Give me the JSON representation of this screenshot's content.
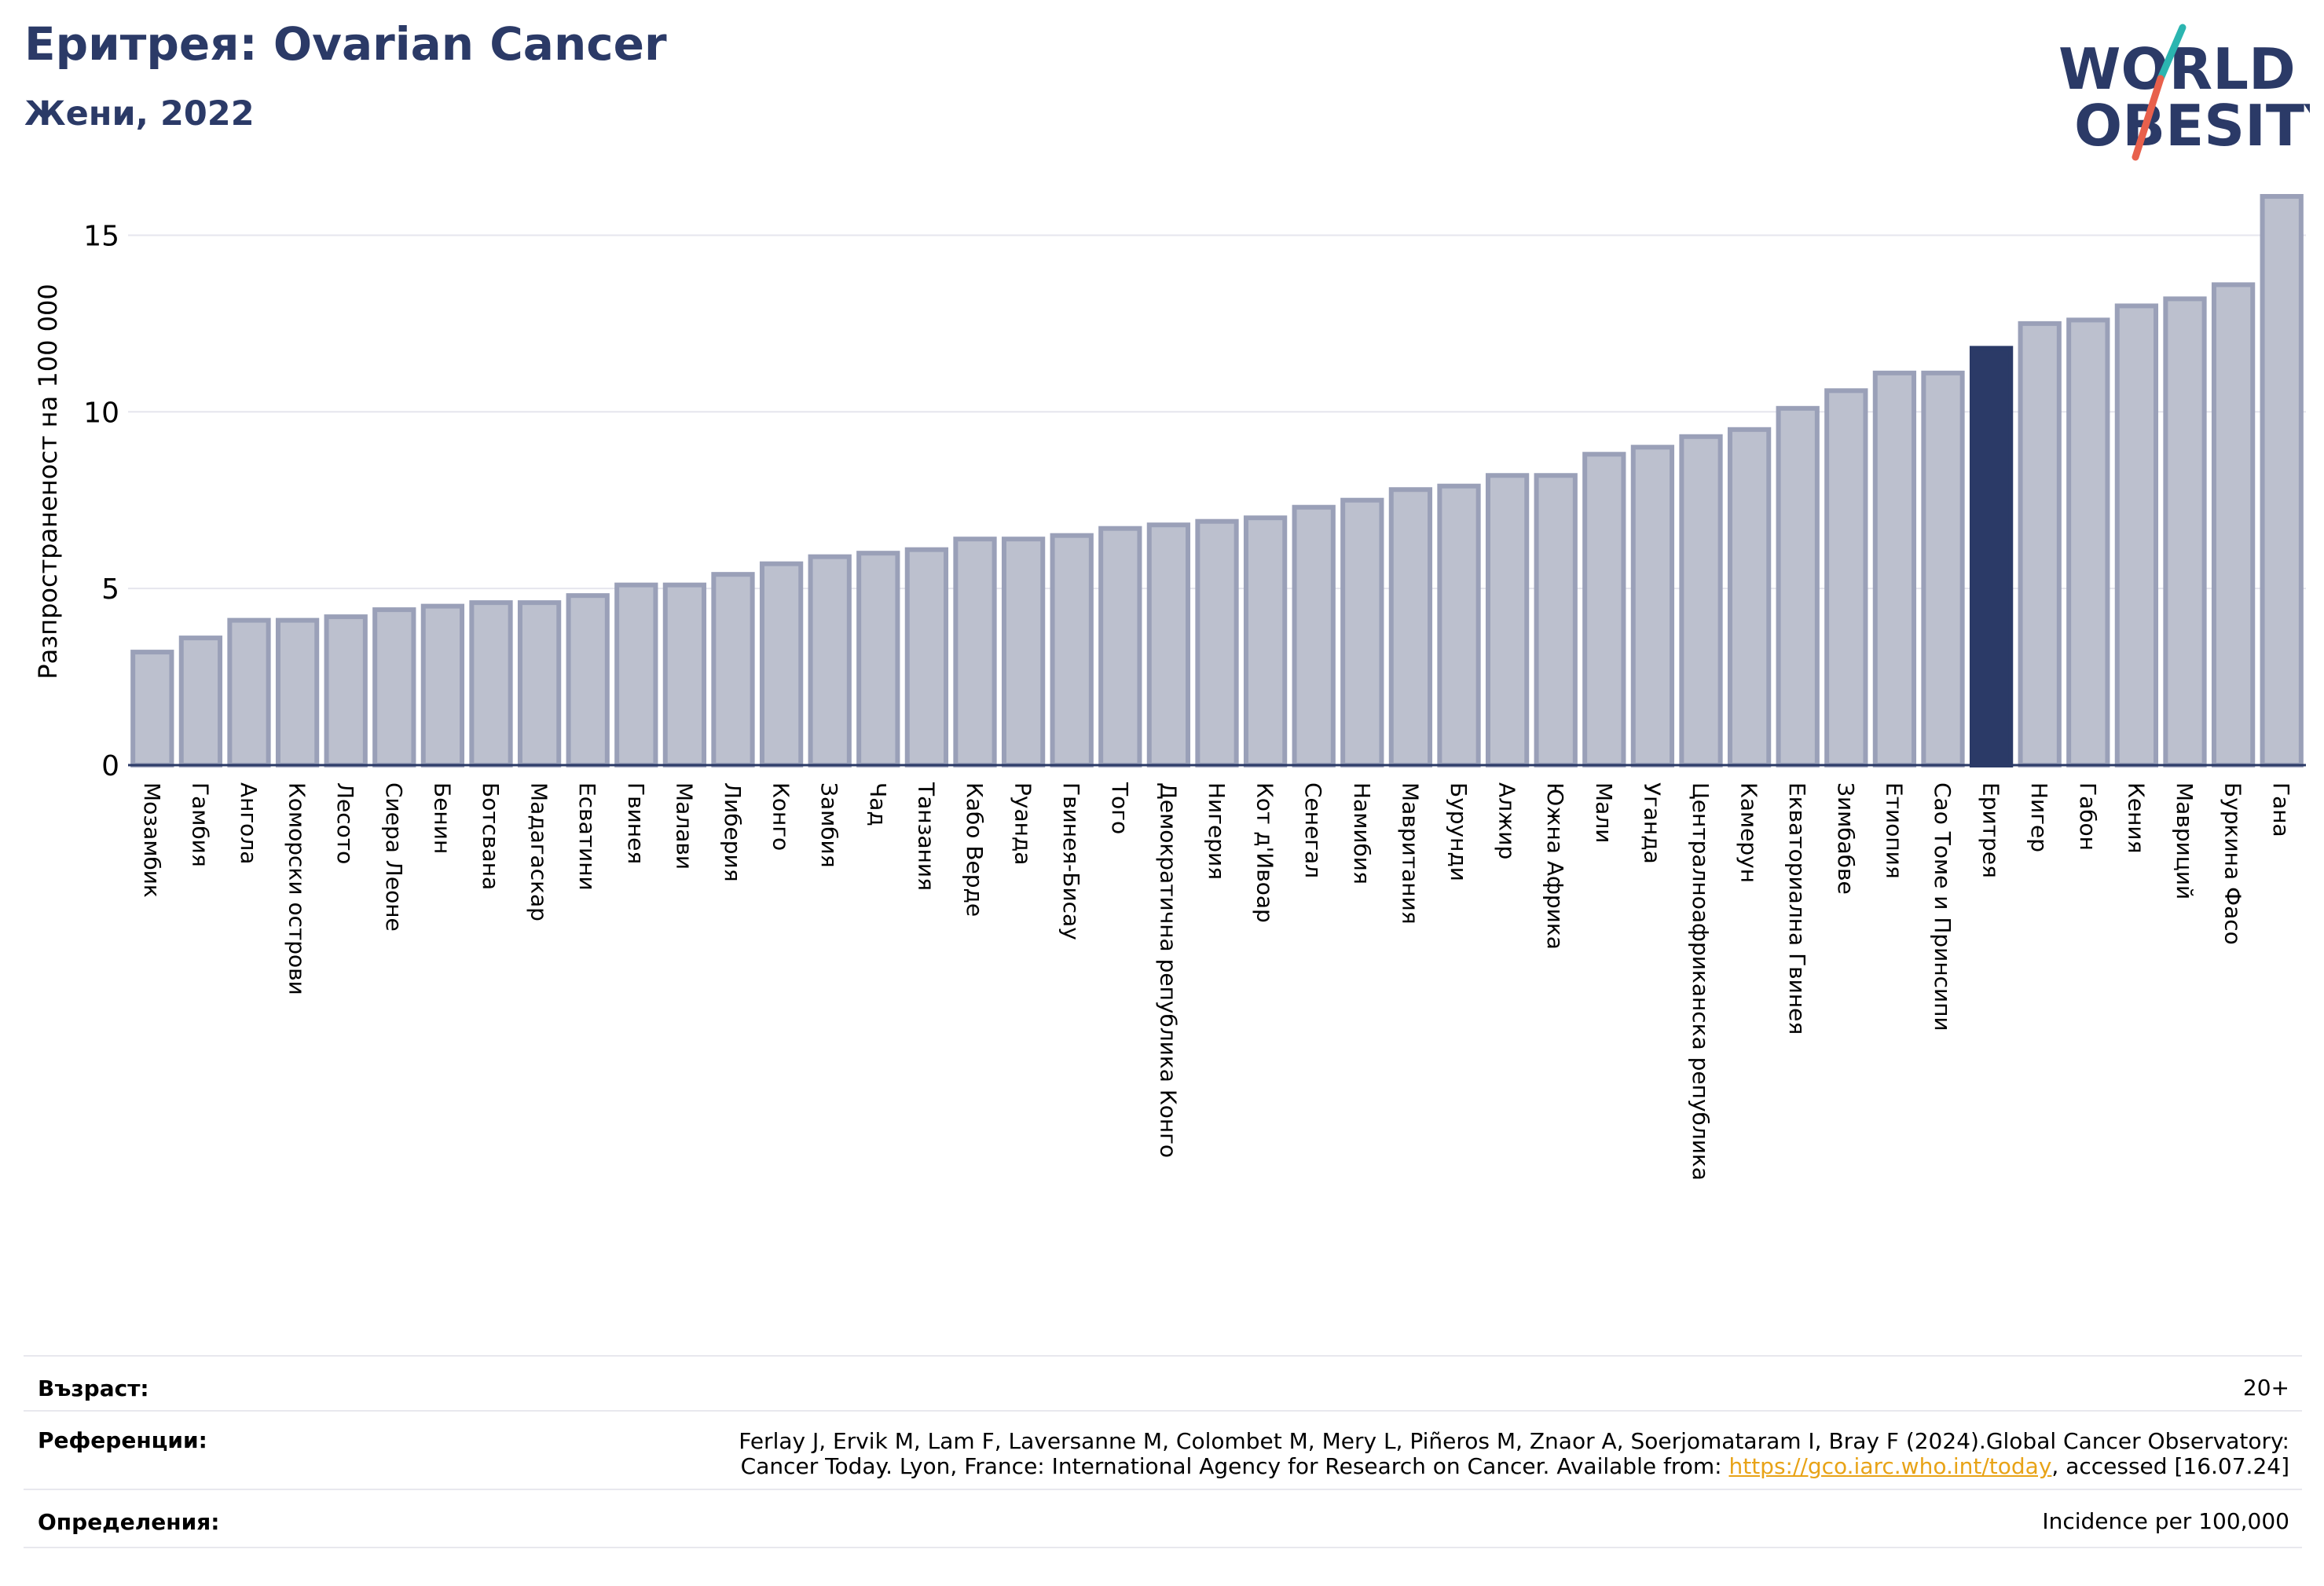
{
  "header": {
    "title": "Еритрея: Ovarian Cancer",
    "subtitle": "Жени, 2022"
  },
  "logo": {
    "line1": "WORLD",
    "line2": "OBESITY",
    "colors": {
      "navy": "#2b3a67",
      "teal": "#2bb5b0",
      "coral": "#e8604c"
    }
  },
  "chart_data": {
    "type": "bar",
    "ylabel": "Разпространеност  на 100 000",
    "ylim": [
      0,
      16.5
    ],
    "yticks": [
      0,
      5,
      10,
      15
    ],
    "grid": true,
    "highlight": "Еритрея",
    "colors": {
      "bar": "#bcc0ce",
      "bar_edge": "#9aa0b8",
      "highlight": "#2b3a67",
      "grid": "#e6e6ee"
    },
    "categories": [
      "Мозамбик",
      "Гамбия",
      "Ангола",
      "Коморски острови",
      "Лесото",
      "Сиера Леоне",
      "Бенин",
      "Ботсвана",
      "Мадагаскар",
      "Есватини",
      "Гвинея",
      "Малави",
      "Либерия",
      "Конго",
      "Замбия",
      "Чад",
      "Танзания",
      "Кабо Верде",
      "Руанда",
      "Гвинея-Бисау",
      "Того",
      "Демократична република Конго",
      "Нигерия",
      "Кот д'Ивоар",
      "Сенегал",
      "Намибия",
      "Мавритания",
      "Бурунди",
      "Алжир",
      "Южна Африка",
      "Мали",
      "Уганда",
      "Централноафриканска република",
      "Камерун",
      "Екваториална Гвинея",
      "Зимбабве",
      "Етиопия",
      "Сао Томе и Принсипи",
      "Еритрея",
      "Нигер",
      "Габон",
      "Кения",
      "Мавриций",
      "Буркина Фасо",
      "Гана"
    ],
    "values": [
      3.2,
      3.6,
      4.1,
      4.1,
      4.2,
      4.4,
      4.5,
      4.6,
      4.6,
      4.8,
      5.1,
      5.1,
      5.4,
      5.7,
      5.9,
      6.0,
      6.1,
      6.4,
      6.4,
      6.5,
      6.7,
      6.8,
      6.9,
      7.0,
      7.3,
      7.5,
      7.8,
      7.9,
      8.2,
      8.2,
      8.8,
      9.0,
      9.3,
      9.5,
      10.1,
      10.6,
      11.1,
      11.1,
      11.8,
      12.5,
      12.6,
      13.0,
      13.2,
      13.6,
      16.1
    ]
  },
  "footer": {
    "age_label": "Възраст:",
    "age_value": "20+",
    "refs_label": "Референции:",
    "refs_line1": "Ferlay J, Ervik M, Lam F, Laversanne M, Colombet M, Mery L, Piñeros M, Znaor A, Soerjomataram I, Bray F (2024).Global Cancer Observatory:",
    "refs_line2_pre": "Cancer Today. Lyon, France: International Agency for Research on Cancer. Available from: ",
    "refs_link": "https://gco.iarc.who.int/today",
    "refs_line2_post": ", accessed [16.07.24]",
    "def_label": "Определения:",
    "def_value": "Incidence per 100,000"
  }
}
